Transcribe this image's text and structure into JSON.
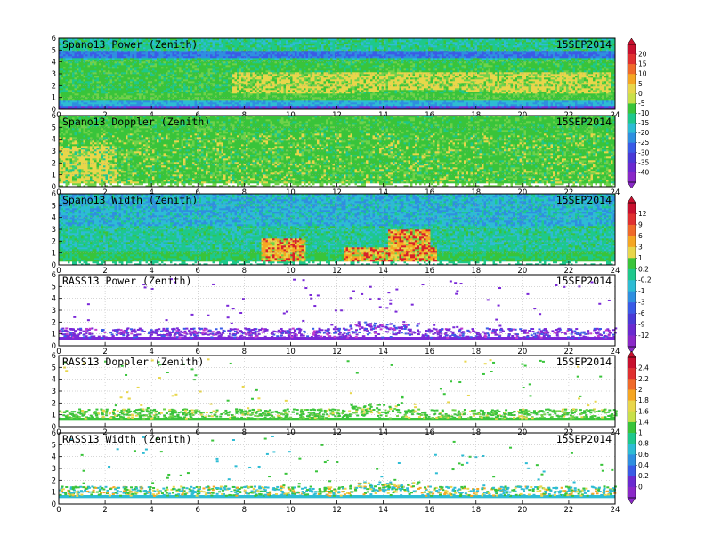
{
  "chart_data": [
    {
      "type": "heatmap",
      "title": "Spano13 Power (Zenith)",
      "date": "15SEP2014",
      "x_ticks": [
        "0",
        "2",
        "4",
        "6",
        "8",
        "10",
        "12",
        "14",
        "16",
        "18",
        "20",
        "22",
        "24"
      ],
      "y_ticks": [
        "0",
        "1",
        "2",
        "3",
        "4",
        "5",
        "6"
      ],
      "xlim": [
        0,
        24
      ],
      "ylim": [
        0,
        6
      ],
      "colorbar": 1,
      "description_layers": [
        {
          "x": [
            0,
            24
          ],
          "y": [
            0.3,
            0.7
          ],
          "level": 8
        },
        {
          "x": [
            0,
            24
          ],
          "y": [
            0.7,
            1.3
          ],
          "level": 12
        },
        {
          "x": [
            7.5,
            24
          ],
          "y": [
            1.3,
            3.2
          ],
          "level": 14
        },
        {
          "x": [
            0,
            24
          ],
          "y": [
            3.2,
            6
          ],
          "level": 10
        }
      ]
    },
    {
      "type": "heatmap",
      "title": "Spano13 Doppler (Zenith)",
      "date": "15SEP2014",
      "x_ticks": [
        "0",
        "2",
        "4",
        "6",
        "8",
        "10",
        "12",
        "14",
        "16",
        "18",
        "20",
        "22",
        "24"
      ],
      "y_ticks": [
        "0",
        "1",
        "2",
        "3",
        "4",
        "5",
        "6"
      ],
      "xlim": [
        0,
        24
      ],
      "ylim": [
        0,
        6
      ],
      "colorbar": 1
    },
    {
      "type": "heatmap",
      "title": "Spano13 Width (Zenith)",
      "date": "15SEP2014",
      "x_ticks": [
        "0",
        "2",
        "4",
        "6",
        "8",
        "10",
        "12",
        "14",
        "16",
        "18",
        "20",
        "22",
        "24"
      ],
      "y_ticks": [
        "0",
        "1",
        "2",
        "3",
        "4",
        "5",
        "6"
      ],
      "xlim": [
        0,
        24
      ],
      "ylim": [
        0,
        6
      ],
      "colorbar": 2
    },
    {
      "type": "heatmap",
      "title": "RASS13 Power (Zenith)",
      "date": "15SEP2014",
      "x_ticks": [
        "0",
        "2",
        "4",
        "6",
        "8",
        "10",
        "12",
        "14",
        "16",
        "18",
        "20",
        "22",
        "24"
      ],
      "y_ticks": [
        "0",
        "1",
        "2",
        "3",
        "4",
        "5",
        "6"
      ],
      "xlim": [
        0,
        24
      ],
      "ylim": [
        0,
        6
      ],
      "colorbar": 2
    },
    {
      "type": "heatmap",
      "title": "RASS13 Doppler (Zenith)",
      "date": "15SEP2014",
      "x_ticks": [
        "0",
        "2",
        "4",
        "6",
        "8",
        "10",
        "12",
        "14",
        "16",
        "18",
        "20",
        "22",
        "24"
      ],
      "y_ticks": [
        "0",
        "1",
        "2",
        "3",
        "4",
        "5",
        "6"
      ],
      "xlim": [
        0,
        24
      ],
      "ylim": [
        0,
        6
      ],
      "colorbar": 3
    },
    {
      "type": "heatmap",
      "title": "RASS13 Width (Zenith)",
      "date": "15SEP2014",
      "x_ticks": [
        "0",
        "2",
        "4",
        "6",
        "8",
        "10",
        "12",
        "14",
        "16",
        "18",
        "20",
        "22",
        "24"
      ],
      "y_ticks": [
        "0",
        "1",
        "2",
        "3",
        "4",
        "5",
        "6"
      ],
      "xlim": [
        0,
        24
      ],
      "ylim": [
        0,
        6
      ],
      "colorbar": 3
    }
  ],
  "colorbars": [
    {
      "labels": [
        "20",
        "15",
        "10",
        "5",
        "0",
        "-5",
        "-10",
        "-15",
        "-20",
        "-25",
        "-30",
        "-35",
        "-40"
      ],
      "colors": [
        "#c8102e",
        "#e03030",
        "#f06a2a",
        "#f5a623",
        "#e8d64b",
        "#c8e04a",
        "#39c43a",
        "#1ec88c",
        "#2dbcd4",
        "#2f8fe0",
        "#3a5be6",
        "#4a3ad6",
        "#6a2ad0",
        "#8a28c8"
      ]
    },
    {
      "labels": [
        "12",
        "9",
        "6",
        "3",
        "1",
        "0.2",
        "-0.2",
        "-1",
        "-3",
        "-6",
        "-9",
        "-12"
      ],
      "colors": [
        "#c8102e",
        "#e03030",
        "#f06a2a",
        "#f5a623",
        "#e8d64b",
        "#39c43a",
        "#1ec88c",
        "#2dbcd4",
        "#2f8fe0",
        "#3a5be6",
        "#4a3ad6",
        "#6a2ad0",
        "#8a28c8"
      ]
    },
    {
      "labels": [
        "2.4",
        "2.2",
        "2",
        "1.8",
        "1.6",
        "1.4",
        "1",
        "0.8",
        "0.6",
        "0.4",
        "0.2",
        "0"
      ],
      "colors": [
        "#c8102e",
        "#e03030",
        "#f06a2a",
        "#f5a623",
        "#e8d64b",
        "#c8e04a",
        "#39c43a",
        "#1ec88c",
        "#2dbcd4",
        "#2f8fe0",
        "#3a5be6",
        "#6a2ad0",
        "#8a28c8"
      ]
    }
  ],
  "palette": {
    "green": "#39c43a",
    "ltgreen": "#6fd24a",
    "teal": "#1ec88c",
    "cyan": "#2dbcd4",
    "blue": "#2f8fe0",
    "indigo": "#3a5be6",
    "purple": "#7a28d8",
    "yellow": "#e8d64b",
    "orange": "#f5a623",
    "red": "#d8202a"
  }
}
